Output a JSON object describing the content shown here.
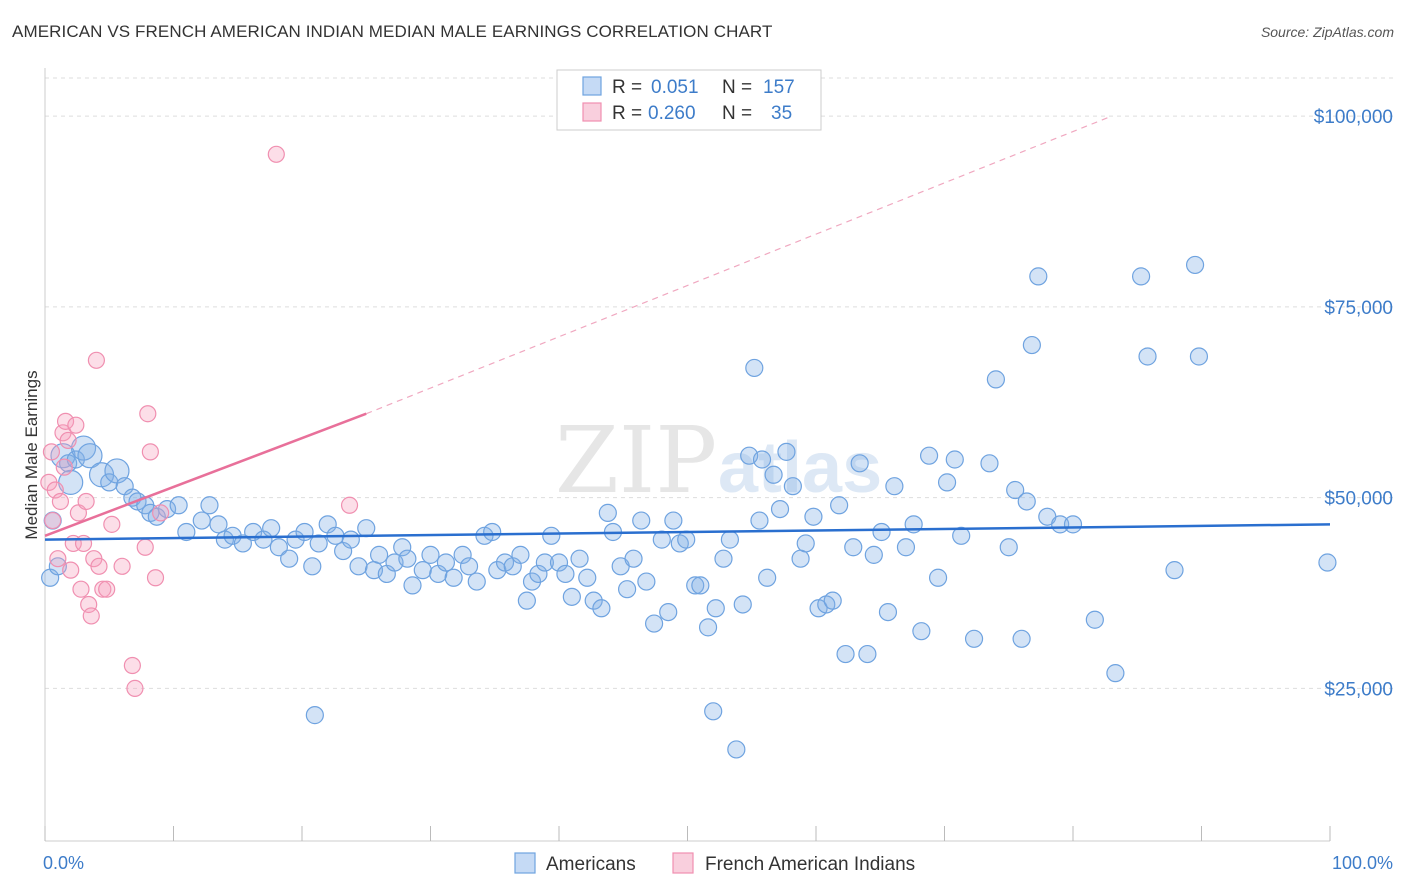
{
  "header": {
    "title": "AMERICAN VS FRENCH AMERICAN INDIAN MEDIAN MALE EARNINGS CORRELATION CHART",
    "source": "Source: ZipAtlas.com"
  },
  "watermark": "ZIPatlas",
  "legend": {
    "r_label": "R =",
    "n_label": "N =",
    "rows": [
      {
        "r": "0.051",
        "n": "157"
      },
      {
        "r": "0.260",
        "n": "35"
      }
    ]
  },
  "chart_data": {
    "type": "scatter",
    "title": "AMERICAN VS FRENCH AMERICAN INDIAN MEDIAN MALE EARNINGS CORRELATION CHART",
    "xlabel": "",
    "ylabel": "Median Male Earnings",
    "xlim": [
      0,
      100
    ],
    "ylim": [
      5000,
      105000
    ],
    "x_tick_labels": [
      "0.0%",
      "100.0%"
    ],
    "y_ticks": [
      25000,
      50000,
      75000,
      100000
    ],
    "y_tick_labels": [
      "$25,000",
      "$50,000",
      "$75,000",
      "$100,000"
    ],
    "grid": true,
    "legend_position": "top-center",
    "colors": {
      "americans": "#6fa3e0",
      "americans_line": "#2a6fcf",
      "french": "#f08fb0",
      "french_line": "#e8709a",
      "axis_text": "#3d7cc9"
    },
    "series": [
      {
        "name": "Americans",
        "r": 0.051,
        "n": 157,
        "trend": {
          "x": [
            0,
            100
          ],
          "y": [
            44500,
            46500
          ]
        },
        "points": [
          [
            0.4,
            39500
          ],
          [
            0.6,
            47000
          ],
          [
            1.0,
            41000
          ],
          [
            1.4,
            55500
          ],
          [
            1.8,
            54500
          ],
          [
            2.0,
            52000
          ],
          [
            2.4,
            55000
          ],
          [
            3.0,
            56500
          ],
          [
            3.5,
            55500
          ],
          [
            4.4,
            53000
          ],
          [
            5.0,
            52000
          ],
          [
            5.6,
            53500
          ],
          [
            6.2,
            51500
          ],
          [
            6.8,
            50000
          ],
          [
            7.2,
            49500
          ],
          [
            7.8,
            49000
          ],
          [
            8.2,
            48000
          ],
          [
            8.7,
            47500
          ],
          [
            9.5,
            48500
          ],
          [
            10.4,
            49000
          ],
          [
            11.0,
            45500
          ],
          [
            12.2,
            47000
          ],
          [
            12.8,
            49000
          ],
          [
            13.5,
            46500
          ],
          [
            14.0,
            44500
          ],
          [
            14.6,
            45000
          ],
          [
            15.4,
            44000
          ],
          [
            16.2,
            45500
          ],
          [
            17.0,
            44500
          ],
          [
            17.6,
            46000
          ],
          [
            18.2,
            43500
          ],
          [
            19.0,
            42000
          ],
          [
            19.5,
            44500
          ],
          [
            20.2,
            45500
          ],
          [
            20.8,
            41000
          ],
          [
            21.3,
            44000
          ],
          [
            22.0,
            46500
          ],
          [
            22.6,
            45000
          ],
          [
            23.2,
            43000
          ],
          [
            23.8,
            44500
          ],
          [
            24.4,
            41000
          ],
          [
            25.0,
            46000
          ],
          [
            25.6,
            40500
          ],
          [
            26.0,
            42500
          ],
          [
            26.6,
            40000
          ],
          [
            27.2,
            41500
          ],
          [
            27.8,
            43500
          ],
          [
            28.2,
            42000
          ],
          [
            28.6,
            38500
          ],
          [
            29.4,
            40500
          ],
          [
            30.0,
            42500
          ],
          [
            30.6,
            40000
          ],
          [
            31.2,
            41500
          ],
          [
            31.8,
            39500
          ],
          [
            32.5,
            42500
          ],
          [
            33.0,
            41000
          ],
          [
            33.6,
            39000
          ],
          [
            34.2,
            45000
          ],
          [
            34.8,
            45500
          ],
          [
            35.2,
            40500
          ],
          [
            35.8,
            41500
          ],
          [
            36.4,
            41000
          ],
          [
            37.0,
            42500
          ],
          [
            37.5,
            36500
          ],
          [
            37.9,
            39000
          ],
          [
            38.4,
            40000
          ],
          [
            38.9,
            41500
          ],
          [
            39.4,
            45000
          ],
          [
            40.0,
            41500
          ],
          [
            40.5,
            40000
          ],
          [
            41.0,
            37000
          ],
          [
            41.6,
            42000
          ],
          [
            42.2,
            39500
          ],
          [
            42.7,
            36500
          ],
          [
            43.3,
            35500
          ],
          [
            43.8,
            48000
          ],
          [
            44.2,
            45500
          ],
          [
            44.8,
            41000
          ],
          [
            45.3,
            38000
          ],
          [
            45.8,
            42000
          ],
          [
            46.4,
            47000
          ],
          [
            46.8,
            39000
          ],
          [
            47.4,
            33500
          ],
          [
            48.0,
            44500
          ],
          [
            48.5,
            35000
          ],
          [
            48.9,
            47000
          ],
          [
            49.4,
            44000
          ],
          [
            49.9,
            44500
          ],
          [
            50.6,
            38500
          ],
          [
            51.0,
            38500
          ],
          [
            51.6,
            33000
          ],
          [
            52.2,
            35500
          ],
          [
            52.8,
            42000
          ],
          [
            53.3,
            44500
          ],
          [
            53.8,
            17000
          ],
          [
            54.3,
            36000
          ],
          [
            54.8,
            55500
          ],
          [
            55.2,
            67000
          ],
          [
            55.6,
            47000
          ],
          [
            56.2,
            39500
          ],
          [
            56.7,
            53000
          ],
          [
            57.2,
            48500
          ],
          [
            57.7,
            56000
          ],
          [
            58.2,
            51500
          ],
          [
            58.8,
            42000
          ],
          [
            59.2,
            44000
          ],
          [
            59.8,
            47500
          ],
          [
            60.2,
            35500
          ],
          [
            60.8,
            36000
          ],
          [
            61.3,
            36500
          ],
          [
            61.8,
            49000
          ],
          [
            62.3,
            29500
          ],
          [
            62.9,
            43500
          ],
          [
            63.4,
            54500
          ],
          [
            64.0,
            29500
          ],
          [
            64.5,
            42500
          ],
          [
            65.1,
            45500
          ],
          [
            65.6,
            35000
          ],
          [
            66.1,
            51500
          ],
          [
            67.0,
            43500
          ],
          [
            67.6,
            46500
          ],
          [
            68.2,
            32500
          ],
          [
            68.8,
            55500
          ],
          [
            69.5,
            39500
          ],
          [
            70.2,
            52000
          ],
          [
            70.8,
            55000
          ],
          [
            71.3,
            45000
          ],
          [
            72.3,
            31500
          ],
          [
            73.5,
            54500
          ],
          [
            74.0,
            65500
          ],
          [
            75.0,
            43500
          ],
          [
            75.5,
            51000
          ],
          [
            76.0,
            31500
          ],
          [
            76.4,
            49500
          ],
          [
            76.8,
            70000
          ],
          [
            77.3,
            79000
          ],
          [
            78.0,
            47500
          ],
          [
            79.0,
            46500
          ],
          [
            80.0,
            46500
          ],
          [
            81.7,
            34000
          ],
          [
            83.3,
            27000
          ],
          [
            85.3,
            79000
          ],
          [
            85.8,
            68500
          ],
          [
            87.9,
            40500
          ],
          [
            89.5,
            80500
          ],
          [
            89.8,
            68500
          ],
          [
            99.8,
            41500
          ],
          [
            21.0,
            21500
          ],
          [
            52.0,
            22000
          ],
          [
            55.8,
            55000
          ]
        ],
        "sizes_large": [
          [
            1.4,
            55500
          ],
          [
            2.0,
            52000
          ],
          [
            3.0,
            56500
          ],
          [
            3.5,
            55500
          ],
          [
            4.4,
            53000
          ],
          [
            5.6,
            53500
          ]
        ]
      },
      {
        "name": "French American Indians",
        "r": 0.26,
        "n": 35,
        "trend_solid": {
          "x": [
            0,
            25
          ],
          "y": [
            45000,
            61000
          ]
        },
        "trend_dashed": {
          "x": [
            25,
            83
          ],
          "y": [
            61000,
            100000
          ]
        },
        "points": [
          [
            0.3,
            52000
          ],
          [
            0.5,
            56000
          ],
          [
            0.6,
            47000
          ],
          [
            0.8,
            51000
          ],
          [
            1.0,
            42000
          ],
          [
            1.2,
            49500
          ],
          [
            1.4,
            58500
          ],
          [
            1.5,
            54000
          ],
          [
            1.6,
            60000
          ],
          [
            1.8,
            57500
          ],
          [
            2.0,
            40500
          ],
          [
            2.2,
            44000
          ],
          [
            2.4,
            59500
          ],
          [
            2.6,
            48000
          ],
          [
            2.8,
            38000
          ],
          [
            3.0,
            44000
          ],
          [
            3.2,
            49500
          ],
          [
            3.4,
            36000
          ],
          [
            3.6,
            34500
          ],
          [
            3.8,
            42000
          ],
          [
            4.0,
            68000
          ],
          [
            4.2,
            41000
          ],
          [
            4.5,
            38000
          ],
          [
            4.8,
            38000
          ],
          [
            5.2,
            46500
          ],
          [
            6.0,
            41000
          ],
          [
            6.8,
            28000
          ],
          [
            7.0,
            25000
          ],
          [
            7.8,
            43500
          ],
          [
            8.0,
            61000
          ],
          [
            8.2,
            56000
          ],
          [
            8.6,
            39500
          ],
          [
            9.0,
            48000
          ],
          [
            18.0,
            95000
          ],
          [
            23.7,
            49000
          ]
        ]
      }
    ]
  },
  "bottom_legend": {
    "items": [
      "Americans",
      "French American Indians"
    ]
  }
}
